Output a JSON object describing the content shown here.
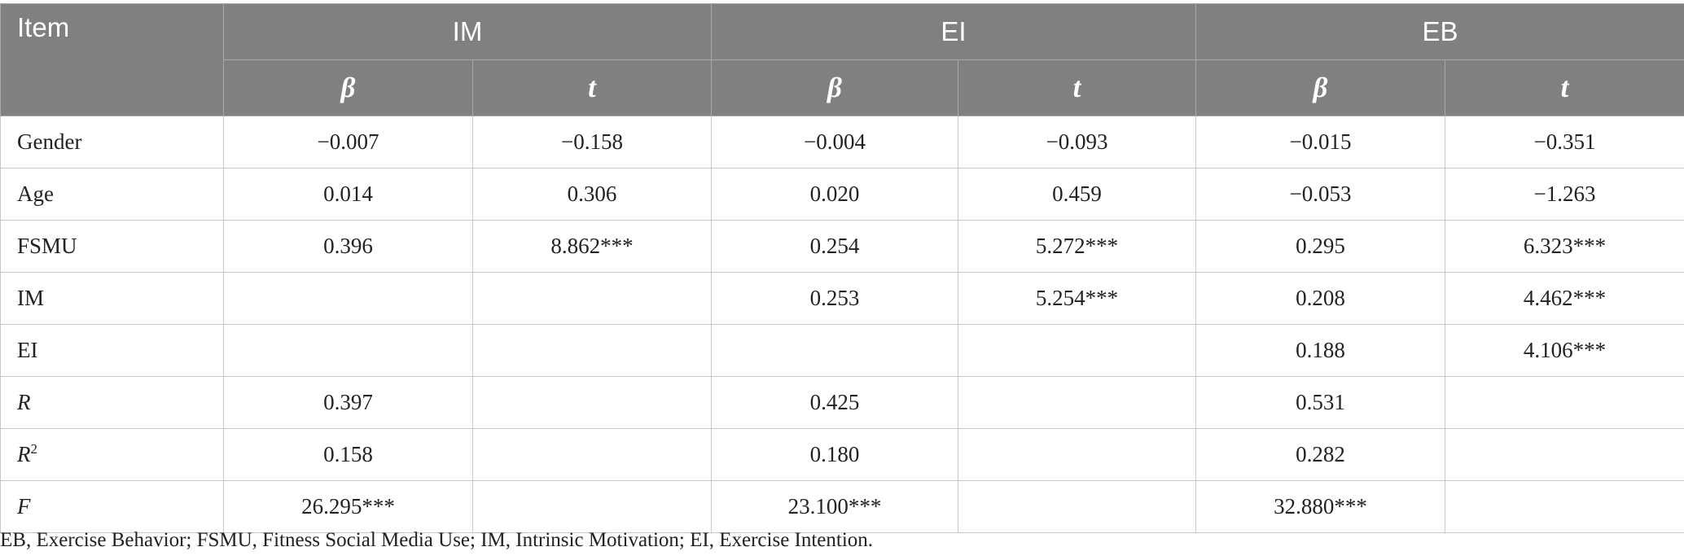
{
  "header": {
    "item_label": "Item",
    "groups": [
      "IM",
      "EI",
      "EB"
    ],
    "sub": [
      "β",
      "t",
      "β",
      "t",
      "β",
      "t"
    ]
  },
  "rows": [
    {
      "label": "Gender",
      "cells": [
        "−0.007",
        "−0.158",
        "−0.004",
        "−0.093",
        "−0.015",
        "−0.351"
      ]
    },
    {
      "label": "Age",
      "cells": [
        "0.014",
        "0.306",
        "0.020",
        "0.459",
        "−0.053",
        "−1.263"
      ]
    },
    {
      "label": "FSMU",
      "cells": [
        "0.396",
        "8.862***",
        "0.254",
        "5.272***",
        "0.295",
        "6.323***"
      ]
    },
    {
      "label": "IM",
      "cells": [
        "",
        "",
        "0.253",
        "5.254***",
        "0.208",
        "4.462***"
      ]
    },
    {
      "label": "EI",
      "cells": [
        "",
        "",
        "",
        "",
        "0.188",
        "4.106***"
      ]
    },
    {
      "label": "R",
      "cells": [
        "0.397",
        "",
        "0.425",
        "",
        "0.531",
        ""
      ]
    },
    {
      "label": "R",
      "label_sup": "2",
      "cells": [
        "0.158",
        "",
        "0.180",
        "",
        "0.282",
        ""
      ]
    },
    {
      "label": "F",
      "cells": [
        "26.295***",
        "",
        "23.100***",
        "",
        "32.880***",
        ""
      ]
    }
  ],
  "footnote": "EB, Exercise Behavior; FSMU, Fitness Social Media Use; IM, Intrinsic Motivation; EI, Exercise Intention."
}
